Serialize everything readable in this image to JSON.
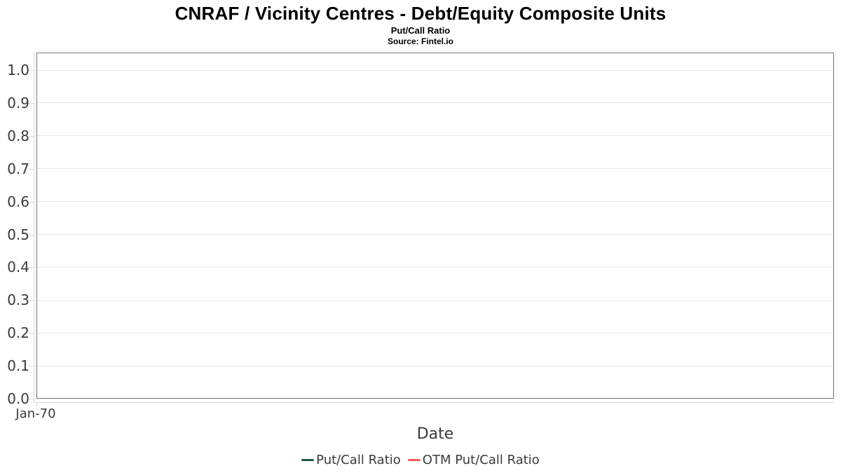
{
  "header": {
    "title": "CNRAF / Vicinity Centres - Debt/Equity Composite Units",
    "subtitle": "Put/Call Ratio",
    "source": "Source: Fintel.io"
  },
  "axes": {
    "xlabel": "Date",
    "xtick_labels": [
      "Jan-70"
    ],
    "ytick_labels": [
      "1.0",
      "0.9",
      "0.8",
      "0.7",
      "0.6",
      "0.5",
      "0.4",
      "0.3",
      "0.2",
      "0.1",
      "0.0"
    ]
  },
  "legend": {
    "items": [
      {
        "label": "Put/Call Ratio",
        "color": "#1a5c3e"
      },
      {
        "label": "OTM Put/Call Ratio",
        "color": "#fb5852"
      }
    ]
  },
  "colors": {
    "grid": "#e8e8e8",
    "plot_border": "#737373",
    "axis_line": "#d9d9d9",
    "axis_text": "#3a3a3a",
    "title_text": "#000000",
    "put_call_line": "#1a5c3e",
    "otm_put_call_line": "#fb5852"
  },
  "chart_data": {
    "type": "line",
    "title": "CNRAF / Vicinity Centres - Debt/Equity Composite Units",
    "subtitle": "Put/Call Ratio",
    "source": "Source: Fintel.io",
    "xlabel": "Date",
    "ylabel": "",
    "ylim": [
      0.0,
      1.0
    ],
    "ytick_step": 0.1,
    "yticks": [
      1.0,
      0.9,
      0.8,
      0.7,
      0.6,
      0.5,
      0.4,
      0.3,
      0.2,
      0.1,
      0.0
    ],
    "xticks": [
      "Jan-70"
    ],
    "grid": true,
    "legend_position": "bottom",
    "series": [
      {
        "name": "Put/Call Ratio",
        "color": "#1a5c3e",
        "x": [],
        "values": []
      },
      {
        "name": "OTM Put/Call Ratio",
        "color": "#fb5852",
        "x": [],
        "values": []
      }
    ]
  }
}
